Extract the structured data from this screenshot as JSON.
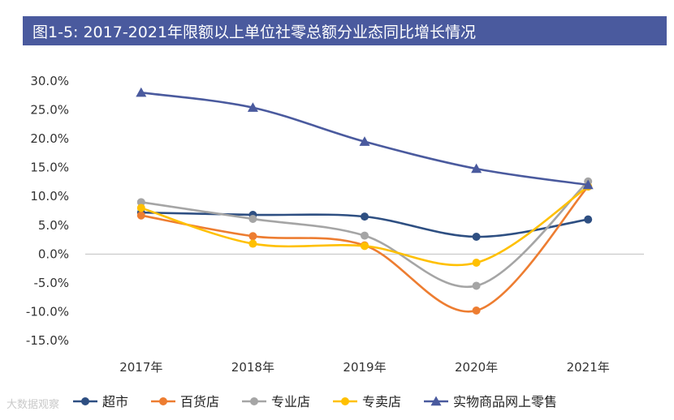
{
  "chart_data": {
    "type": "line",
    "title": "图1-5: 2017-2021年限额以上单位社零总额分业态同比增长情况",
    "categories": [
      "2017年",
      "2018年",
      "2019年",
      "2020年",
      "2021年"
    ],
    "ylim": [
      -15,
      30
    ],
    "yticks": [
      -15,
      -10,
      -5,
      0,
      5,
      10,
      15,
      20,
      25,
      30
    ],
    "ytick_labels": [
      "-15.0%",
      "-10.0%",
      "-5.0%",
      "0.0%",
      "5.0%",
      "10.0%",
      "15.0%",
      "20.0%",
      "25.0%",
      "30.0%"
    ],
    "series": [
      {
        "name": "超市",
        "color": "#2e4f82",
        "marker": "circle",
        "values": [
          7.2,
          6.8,
          6.5,
          3.0,
          6.0
        ]
      },
      {
        "name": "百货店",
        "color": "#ed7d31",
        "marker": "circle",
        "values": [
          6.7,
          3.1,
          1.5,
          -9.8,
          11.7
        ]
      },
      {
        "name": "专业店",
        "color": "#a5a5a5",
        "marker": "circle",
        "values": [
          9.0,
          6.1,
          3.2,
          -5.5,
          12.6
        ]
      },
      {
        "name": "专卖店",
        "color": "#ffc000",
        "marker": "circle",
        "values": [
          8.0,
          1.8,
          1.4,
          -1.5,
          11.7
        ]
      },
      {
        "name": "实物商品网上零售",
        "color": "#4a5a9e",
        "marker": "triangle",
        "values": [
          28.0,
          25.4,
          19.5,
          14.8,
          12.0
        ]
      }
    ],
    "legend_position": "bottom",
    "grid": false
  },
  "watermark": "大数据观察"
}
